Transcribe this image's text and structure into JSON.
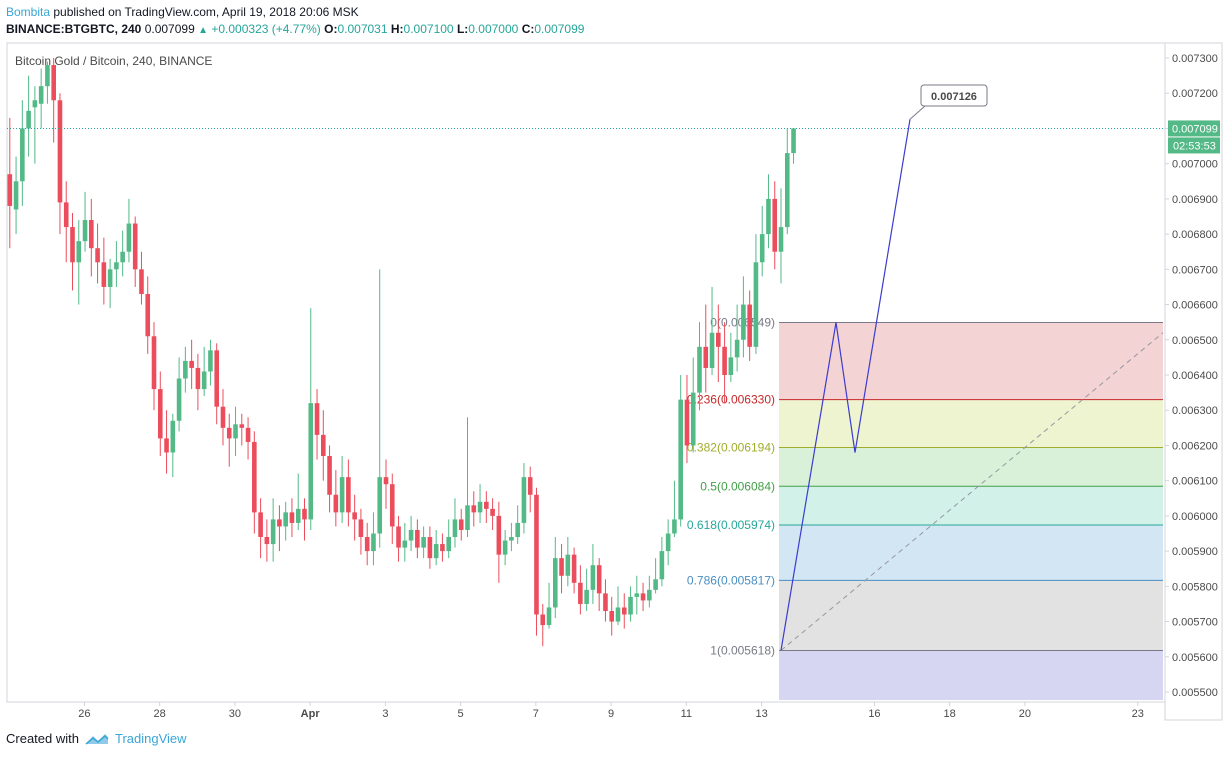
{
  "header": {
    "author": "Bombita",
    "published": " published on TradingView.com, April 19, 2018 20:06 MSK",
    "symbol": "BINANCE:BTGBTC, 240",
    "last": "0.007099",
    "change": "+0.000323 (+4.77%)",
    "o_label": "O:",
    "o_val": "0.007031",
    "h_label": "H:",
    "h_val": "0.007100",
    "l_label": "L:",
    "l_val": "0.007000",
    "c_label": "C:",
    "c_val": "0.007099"
  },
  "footer": {
    "created": "Created with",
    "brand": "TradingView"
  },
  "colors": {
    "up": "#53b987",
    "down": "#eb4d5c",
    "accent": "#39a6d6"
  },
  "chart_data": {
    "type": "candlestick",
    "title": "Bitcoin Gold / Bitcoin, 240, BINANCE",
    "ylim": [
      0.00545,
      0.00735
    ],
    "y_ticks": [
      "0.007300",
      "0.007200",
      "0.007100",
      "0.007000",
      "0.006900",
      "0.006800",
      "0.006700",
      "0.006600",
      "0.006500",
      "0.006400",
      "0.006300",
      "0.006200",
      "0.006100",
      "0.006000",
      "0.005900",
      "0.005800",
      "0.005700",
      "0.005600",
      "0.005500"
    ],
    "y_tick_values": [
      0.0073,
      0.0072,
      0.0071,
      0.007,
      0.0069,
      0.0068,
      0.0067,
      0.0066,
      0.0065,
      0.0064,
      0.0063,
      0.0062,
      0.0061,
      0.006,
      0.0059,
      0.0058,
      0.0057,
      0.0056,
      0.0055
    ],
    "x_ticks": [
      {
        "label": "26",
        "i": 6
      },
      {
        "label": "28",
        "i": 18
      },
      {
        "label": "30",
        "i": 30
      },
      {
        "label": "Apr",
        "i": 42
      },
      {
        "label": "3",
        "i": 54
      },
      {
        "label": "5",
        "i": 66
      },
      {
        "label": "7",
        "i": 78
      },
      {
        "label": "9",
        "i": 90
      },
      {
        "label": "11",
        "i": 102
      },
      {
        "label": "13",
        "i": 114
      },
      {
        "label": "16",
        "i": 132
      },
      {
        "label": "18",
        "i": 144
      },
      {
        "label": "20",
        "i": 156
      },
      {
        "label": "23",
        "i": 174
      }
    ],
    "last_price_label": "0.007099",
    "countdown_label": "02:53:53",
    "fib_levels": [
      {
        "ratio": 0,
        "price": 0.006549,
        "label": "0(0.006549)",
        "color": "#787b86",
        "fill": "#f3d3d3"
      },
      {
        "ratio": 0.236,
        "price": 0.00633,
        "label": "0.236(0.006330)",
        "color": "#c62828",
        "fill": "#eef3d0"
      },
      {
        "ratio": 0.382,
        "price": 0.006194,
        "label": "0.382(0.006194)",
        "color": "#a0ad2c",
        "fill": "#d8f1d8"
      },
      {
        "ratio": 0.5,
        "price": 0.006084,
        "label": "0.5(0.006084)",
        "color": "#43a047",
        "fill": "#d2f1e8"
      },
      {
        "ratio": 0.618,
        "price": 0.005974,
        "label": "0.618(0.005974)",
        "color": "#26a69a",
        "fill": "#d2e6f3"
      },
      {
        "ratio": 0.786,
        "price": 0.005817,
        "label": "0.786(0.005817)",
        "color": "#4a8ec2",
        "fill": "#e2e2e2"
      },
      {
        "ratio": 1,
        "price": 0.005618,
        "label": "1(0.005618)",
        "color": "#787b86",
        "fill": "#d6d6f2"
      }
    ],
    "projection_label": "0.007126",
    "candles": [
      [
        0.00697,
        0.00688,
        0.00713,
        0.00676
      ],
      [
        0.00687,
        0.00695,
        0.00702,
        0.0068
      ],
      [
        0.00695,
        0.0071,
        0.00718,
        0.00688
      ],
      [
        0.0071,
        0.00715,
        0.00725,
        0.00702
      ],
      [
        0.00716,
        0.00718,
        0.00722,
        0.007
      ],
      [
        0.00717,
        0.00722,
        0.00727,
        0.0071
      ],
      [
        0.00722,
        0.00728,
        0.00729,
        0.00717
      ],
      [
        0.00728,
        0.00718,
        0.0073,
        0.00706
      ],
      [
        0.00718,
        0.00689,
        0.0072,
        0.0068
      ],
      [
        0.00689,
        0.00682,
        0.00695,
        0.00672
      ],
      [
        0.00682,
        0.00672,
        0.00686,
        0.00664
      ],
      [
        0.00672,
        0.00678,
        0.00684,
        0.0066
      ],
      [
        0.00678,
        0.00684,
        0.00692,
        0.00675
      ],
      [
        0.00684,
        0.00676,
        0.0069,
        0.00668
      ],
      [
        0.00676,
        0.00672,
        0.00683,
        0.00666
      ],
      [
        0.00672,
        0.00665,
        0.00679,
        0.0066
      ],
      [
        0.00665,
        0.0067,
        0.00673,
        0.00659
      ],
      [
        0.0067,
        0.00672,
        0.00678,
        0.00665
      ],
      [
        0.00672,
        0.00675,
        0.00681,
        0.00668
      ],
      [
        0.00675,
        0.00683,
        0.0069,
        0.00672
      ],
      [
        0.00683,
        0.0067,
        0.00685,
        0.00665
      ],
      [
        0.0067,
        0.00663,
        0.00675,
        0.0066
      ],
      [
        0.00663,
        0.00651,
        0.00668,
        0.00646
      ],
      [
        0.00651,
        0.00636,
        0.00655,
        0.0063
      ],
      [
        0.00636,
        0.00622,
        0.00641,
        0.00617
      ],
      [
        0.00622,
        0.00618,
        0.0063,
        0.00612
      ],
      [
        0.00618,
        0.00627,
        0.00629,
        0.00611
      ],
      [
        0.00627,
        0.00639,
        0.00645,
        0.00624
      ],
      [
        0.00639,
        0.00644,
        0.00648,
        0.00635
      ],
      [
        0.00644,
        0.00642,
        0.0065,
        0.00636
      ],
      [
        0.00642,
        0.00636,
        0.00646,
        0.0063
      ],
      [
        0.00636,
        0.00641,
        0.00648,
        0.00634
      ],
      [
        0.00641,
        0.00647,
        0.0065,
        0.00637
      ],
      [
        0.00647,
        0.00631,
        0.00649,
        0.00626
      ],
      [
        0.00631,
        0.00625,
        0.00636,
        0.0062
      ],
      [
        0.00625,
        0.00622,
        0.00629,
        0.00614
      ],
      [
        0.00622,
        0.00626,
        0.00631,
        0.00617
      ],
      [
        0.00626,
        0.00625,
        0.00629,
        0.0062
      ],
      [
        0.00625,
        0.00621,
        0.00628,
        0.00616
      ],
      [
        0.00621,
        0.00601,
        0.00624,
        0.00595
      ],
      [
        0.00601,
        0.00594,
        0.00605,
        0.00588
      ],
      [
        0.00594,
        0.00592,
        0.00599,
        0.00587
      ],
      [
        0.00592,
        0.00599,
        0.00605,
        0.00587
      ],
      [
        0.00599,
        0.00597,
        0.00603,
        0.0059
      ],
      [
        0.00597,
        0.00601,
        0.00604,
        0.00593
      ],
      [
        0.00601,
        0.00598,
        0.00605,
        0.00594
      ],
      [
        0.00598,
        0.00602,
        0.00612,
        0.00596
      ],
      [
        0.00602,
        0.00599,
        0.00605,
        0.00593
      ],
      [
        0.00599,
        0.00632,
        0.00659,
        0.00596
      ],
      [
        0.00632,
        0.00623,
        0.00636,
        0.00616
      ],
      [
        0.00623,
        0.00617,
        0.0063,
        0.0061
      ],
      [
        0.00617,
        0.00606,
        0.0062,
        0.00601
      ],
      [
        0.00606,
        0.00601,
        0.00613,
        0.00597
      ],
      [
        0.00601,
        0.00611,
        0.00617,
        0.00598
      ],
      [
        0.00611,
        0.00601,
        0.00616,
        0.00597
      ],
      [
        0.00601,
        0.00599,
        0.00606,
        0.00593
      ],
      [
        0.00599,
        0.00594,
        0.00602,
        0.00589
      ],
      [
        0.00594,
        0.0059,
        0.00598,
        0.00586
      ],
      [
        0.0059,
        0.00595,
        0.00601,
        0.00586
      ],
      [
        0.00595,
        0.00611,
        0.0067,
        0.00591
      ],
      [
        0.00611,
        0.00609,
        0.00616,
        0.00602
      ],
      [
        0.00609,
        0.00597,
        0.00612,
        0.00592
      ],
      [
        0.00597,
        0.00591,
        0.006,
        0.00587
      ],
      [
        0.00591,
        0.00593,
        0.00598,
        0.00587
      ],
      [
        0.00593,
        0.00596,
        0.006,
        0.0059
      ],
      [
        0.00596,
        0.00591,
        0.00599,
        0.00588
      ],
      [
        0.00591,
        0.00594,
        0.00597,
        0.00588
      ],
      [
        0.00594,
        0.00588,
        0.00597,
        0.00585
      ],
      [
        0.00588,
        0.00592,
        0.00596,
        0.00586
      ],
      [
        0.00592,
        0.0059,
        0.00595,
        0.00587
      ],
      [
        0.0059,
        0.00594,
        0.00599,
        0.00588
      ],
      [
        0.00594,
        0.00599,
        0.00605,
        0.00591
      ],
      [
        0.00599,
        0.00596,
        0.00602,
        0.00593
      ],
      [
        0.00596,
        0.00603,
        0.00628,
        0.00594
      ],
      [
        0.00603,
        0.00601,
        0.00607,
        0.00597
      ],
      [
        0.00601,
        0.00604,
        0.00609,
        0.00598
      ],
      [
        0.00604,
        0.00602,
        0.00607,
        0.00598
      ],
      [
        0.00602,
        0.006,
        0.00605,
        0.00596
      ],
      [
        0.006,
        0.00589,
        0.00604,
        0.00581
      ],
      [
        0.00589,
        0.00593,
        0.00596,
        0.00586
      ],
      [
        0.00593,
        0.00594,
        0.00598,
        0.0059
      ],
      [
        0.00594,
        0.00598,
        0.00603,
        0.00592
      ],
      [
        0.00598,
        0.00611,
        0.00615,
        0.00595
      ],
      [
        0.00611,
        0.00606,
        0.00614,
        0.00601
      ],
      [
        0.00606,
        0.00572,
        0.00608,
        0.00566
      ],
      [
        0.00572,
        0.00569,
        0.00575,
        0.00563
      ],
      [
        0.00569,
        0.00574,
        0.00581,
        0.00568
      ],
      [
        0.00574,
        0.00588,
        0.00594,
        0.00571
      ],
      [
        0.00588,
        0.00583,
        0.00592,
        0.00578
      ],
      [
        0.00583,
        0.00589,
        0.00594,
        0.0058
      ],
      [
        0.00589,
        0.00581,
        0.00591,
        0.00578
      ],
      [
        0.00581,
        0.00575,
        0.00586,
        0.00572
      ],
      [
        0.00575,
        0.00579,
        0.00585,
        0.00573
      ],
      [
        0.00579,
        0.00586,
        0.00592,
        0.00575
      ],
      [
        0.00586,
        0.00578,
        0.00588,
        0.00573
      ],
      [
        0.00578,
        0.00573,
        0.00582,
        0.0057
      ],
      [
        0.00573,
        0.0057,
        0.00577,
        0.00566
      ],
      [
        0.0057,
        0.00574,
        0.0058,
        0.00569
      ],
      [
        0.00574,
        0.00572,
        0.00578,
        0.00568
      ],
      [
        0.00572,
        0.00577,
        0.0058,
        0.0057
      ],
      [
        0.00577,
        0.00578,
        0.00583,
        0.00572
      ],
      [
        0.00578,
        0.00576,
        0.00581,
        0.00573
      ],
      [
        0.00576,
        0.00579,
        0.00583,
        0.00574
      ],
      [
        0.00579,
        0.00582,
        0.00588,
        0.00578
      ],
      [
        0.00582,
        0.0059,
        0.00594,
        0.0058
      ],
      [
        0.0059,
        0.00595,
        0.00599,
        0.00586
      ],
      [
        0.00595,
        0.00599,
        0.0061,
        0.00594
      ],
      [
        0.00599,
        0.00633,
        0.0064,
        0.00597
      ],
      [
        0.00633,
        0.0062,
        0.0064,
        0.00615
      ],
      [
        0.0062,
        0.00635,
        0.00645,
        0.00618
      ],
      [
        0.00635,
        0.00648,
        0.00655,
        0.0063
      ],
      [
        0.00648,
        0.00642,
        0.0066,
        0.00635
      ],
      [
        0.00642,
        0.00652,
        0.00665,
        0.0064
      ],
      [
        0.00652,
        0.00648,
        0.0066,
        0.00638
      ],
      [
        0.00648,
        0.0064,
        0.00655,
        0.00632
      ],
      [
        0.0064,
        0.00645,
        0.00652,
        0.00638
      ],
      [
        0.00645,
        0.0065,
        0.0066,
        0.00641
      ],
      [
        0.0065,
        0.0066,
        0.00668,
        0.00645
      ],
      [
        0.0066,
        0.00648,
        0.00664,
        0.00644
      ],
      [
        0.00648,
        0.00672,
        0.0068,
        0.00646
      ],
      [
        0.00672,
        0.0068,
        0.00688,
        0.00668
      ],
      [
        0.0068,
        0.0069,
        0.00697,
        0.00676
      ],
      [
        0.0069,
        0.00675,
        0.00695,
        0.0067
      ],
      [
        0.00675,
        0.00682,
        0.00693,
        0.00666
      ],
      [
        0.00682,
        0.00703,
        0.0071,
        0.0068
      ],
      [
        0.00703,
        0.0071,
        0.0071,
        0.007
      ]
    ]
  }
}
